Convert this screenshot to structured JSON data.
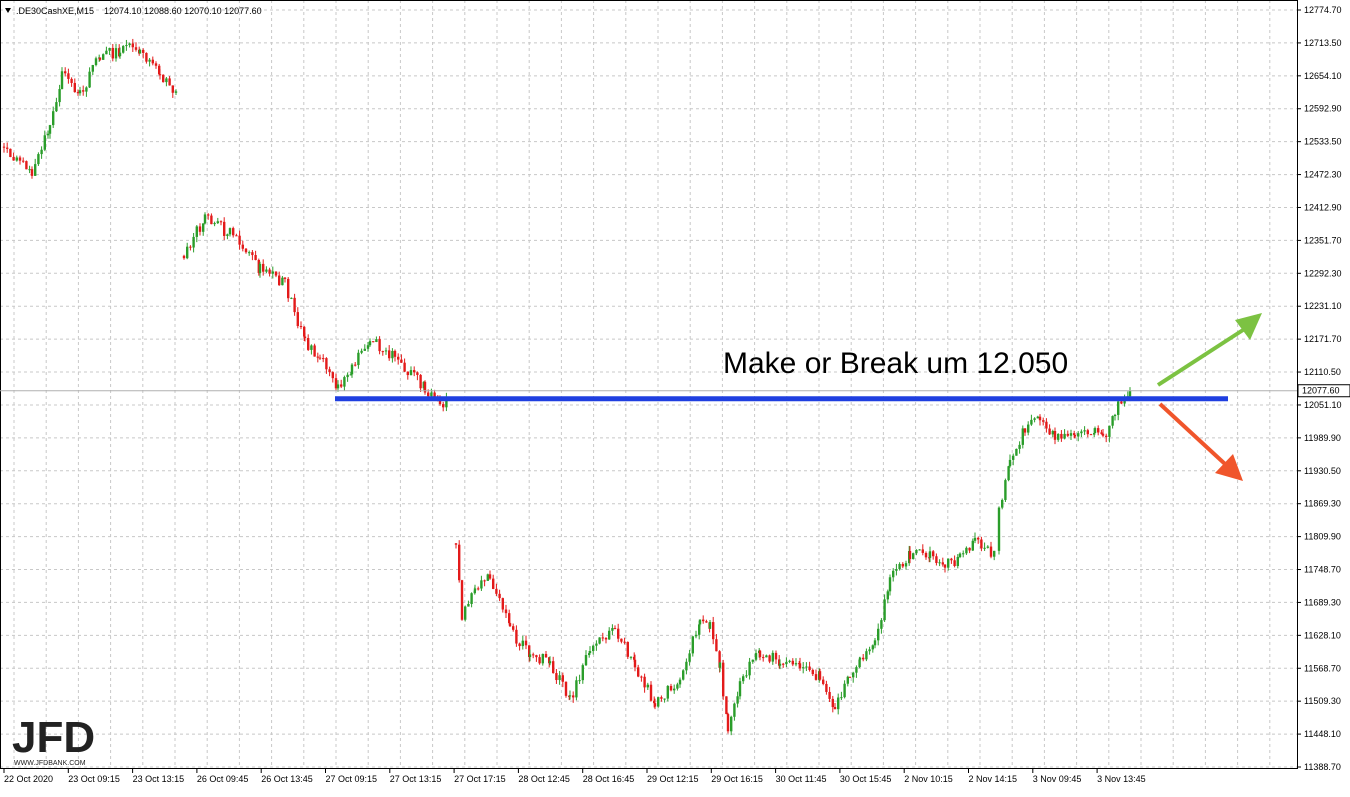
{
  "header": {
    "symbol_label": ".DE30CashXE,M15",
    "ohlc_text": "12074.10 12088.60 12070.10 12077.60"
  },
  "annotation": {
    "text": "Make or Break um 12.050"
  },
  "logo": {
    "text": "JFD",
    "url_text": "WWW.JFDBANK.COM"
  },
  "colors": {
    "bull": "#2a9d2a",
    "bear": "#e31a1a",
    "level_line": "#1f3fe0",
    "arrow_up": "#7cc242",
    "arrow_down": "#f0552b",
    "grid": "#c8c8c8",
    "axis_text": "#000000"
  },
  "chart_data": {
    "type": "candlestick",
    "y_ticks": [
      "12774.70",
      "12713.50",
      "12654.10",
      "12592.90",
      "12533.50",
      "12472.30",
      "12412.90",
      "12351.70",
      "12292.30",
      "12231.10",
      "12171.70",
      "12110.50",
      "12051.10",
      "11989.90",
      "11930.50",
      "11869.30",
      "11809.90",
      "11748.70",
      "11689.30",
      "11628.10",
      "11568.70",
      "11509.30",
      "11448.10",
      "11388.70"
    ],
    "ylim": [
      11388.7,
      12774.7
    ],
    "x_ticks": [
      "22 Oct 2020",
      "23 Oct 09:15",
      "23 Oct 13:15",
      "26 Oct 09:45",
      "26 Oct 13:45",
      "27 Oct 09:15",
      "27 Oct 13:15",
      "27 Oct 17:15",
      "28 Oct 12:45",
      "28 Oct 16:45",
      "29 Oct 12:15",
      "29 Oct 16:15",
      "30 Oct 11:45",
      "30 Oct 15:45",
      "2 Nov 10:15",
      "2 Nov 14:15",
      "3 Nov 09:45",
      "3 Nov 13:45"
    ],
    "current_price": 12077.6,
    "level": 12063,
    "anchors": [
      {
        "x": 4,
        "p": 12520
      },
      {
        "x": 32,
        "p": 12475
      },
      {
        "x": 50,
        "p": 12560
      },
      {
        "x": 62,
        "p": 12660
      },
      {
        "x": 80,
        "p": 12620
      },
      {
        "x": 100,
        "p": 12690
      },
      {
        "x": 120,
        "p": 12700
      },
      {
        "x": 140,
        "p": 12705
      },
      {
        "x": 160,
        "p": 12655
      },
      {
        "x": 178,
        "p": 12615
      },
      {
        "gap": true,
        "x": 184,
        "p": 12330
      },
      {
        "x": 205,
        "p": 12395
      },
      {
        "x": 230,
        "p": 12365
      },
      {
        "x": 260,
        "p": 12300
      },
      {
        "x": 285,
        "p": 12275
      },
      {
        "x": 305,
        "p": 12165
      },
      {
        "x": 320,
        "p": 12140
      },
      {
        "x": 338,
        "p": 12085
      },
      {
        "x": 352,
        "p": 12120
      },
      {
        "x": 370,
        "p": 12170
      },
      {
        "x": 395,
        "p": 12140
      },
      {
        "x": 425,
        "p": 12085
      },
      {
        "x": 440,
        "p": 12050
      },
      {
        "x": 452,
        "p": 12065
      },
      {
        "gap": true,
        "x": 456,
        "p": 11800
      },
      {
        "x": 462,
        "p": 11660
      },
      {
        "x": 475,
        "p": 11720
      },
      {
        "x": 490,
        "p": 11740
      },
      {
        "x": 510,
        "p": 11640
      },
      {
        "x": 530,
        "p": 11595
      },
      {
        "x": 550,
        "p": 11580
      },
      {
        "x": 570,
        "p": 11510
      },
      {
        "x": 590,
        "p": 11605
      },
      {
        "x": 615,
        "p": 11640
      },
      {
        "x": 635,
        "p": 11575
      },
      {
        "x": 655,
        "p": 11505
      },
      {
        "x": 680,
        "p": 11550
      },
      {
        "x": 700,
        "p": 11655
      },
      {
        "x": 710,
        "p": 11650
      },
      {
        "x": 720,
        "p": 11570
      },
      {
        "x": 728,
        "p": 11460
      },
      {
        "x": 740,
        "p": 11545
      },
      {
        "x": 760,
        "p": 11600
      },
      {
        "x": 780,
        "p": 11580
      },
      {
        "x": 800,
        "p": 11570
      },
      {
        "x": 820,
        "p": 11555
      },
      {
        "x": 835,
        "p": 11495
      },
      {
        "x": 850,
        "p": 11560
      },
      {
        "x": 860,
        "p": 11590
      },
      {
        "x": 875,
        "p": 11620
      },
      {
        "x": 890,
        "p": 11730
      },
      {
        "x": 910,
        "p": 11780
      },
      {
        "x": 930,
        "p": 11775
      },
      {
        "x": 945,
        "p": 11760
      },
      {
        "x": 960,
        "p": 11770
      },
      {
        "x": 975,
        "p": 11810
      },
      {
        "x": 995,
        "p": 11775
      },
      {
        "gap": true,
        "x": 999,
        "p": 11860
      },
      {
        "x": 1010,
        "p": 11950
      },
      {
        "x": 1025,
        "p": 12010
      },
      {
        "x": 1040,
        "p": 12030
      },
      {
        "x": 1055,
        "p": 11995
      },
      {
        "x": 1075,
        "p": 12000
      },
      {
        "x": 1095,
        "p": 12010
      },
      {
        "x": 1103,
        "p": 11985
      },
      {
        "x": 1115,
        "p": 12040
      },
      {
        "x": 1130,
        "p": 12078
      }
    ]
  }
}
